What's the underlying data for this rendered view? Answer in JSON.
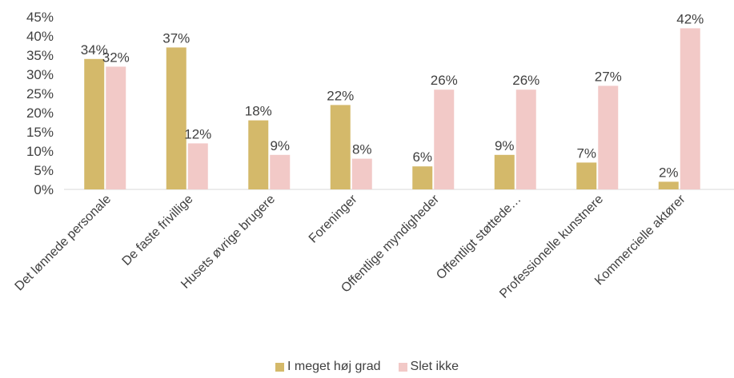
{
  "chart_data": {
    "type": "bar",
    "categories": [
      "Det lønnede personale",
      "De faste frivillige",
      "Husets øvrige brugere",
      "Foreninger",
      "Offentlige myndigheder",
      "Offentligt støttede…",
      "Professionelle kunstnere",
      "Kommercielle aktører"
    ],
    "series": [
      {
        "name": "I meget høj grad",
        "values": [
          34,
          37,
          18,
          22,
          6,
          9,
          7,
          2
        ],
        "labels": [
          "34%",
          "37%",
          "18%",
          "22%",
          "6%",
          "9%",
          "7%",
          "2%"
        ],
        "color": "#d4b96a"
      },
      {
        "name": "Slet ikke",
        "values": [
          32,
          12,
          9,
          8,
          26,
          26,
          27,
          42
        ],
        "labels": [
          "32%",
          "12%",
          "9%",
          "8%",
          "26%",
          "26%",
          "27%",
          "42%"
        ],
        "color": "#f2c9c7"
      }
    ],
    "ylim": [
      0,
      45
    ],
    "yticks": [
      "0%",
      "5%",
      "10%",
      "15%",
      "20%",
      "25%",
      "30%",
      "35%",
      "40%",
      "45%"
    ],
    "ytick_values": [
      0,
      5,
      10,
      15,
      20,
      25,
      30,
      35,
      40,
      45
    ],
    "grid": false,
    "legend_position": "bottom"
  }
}
